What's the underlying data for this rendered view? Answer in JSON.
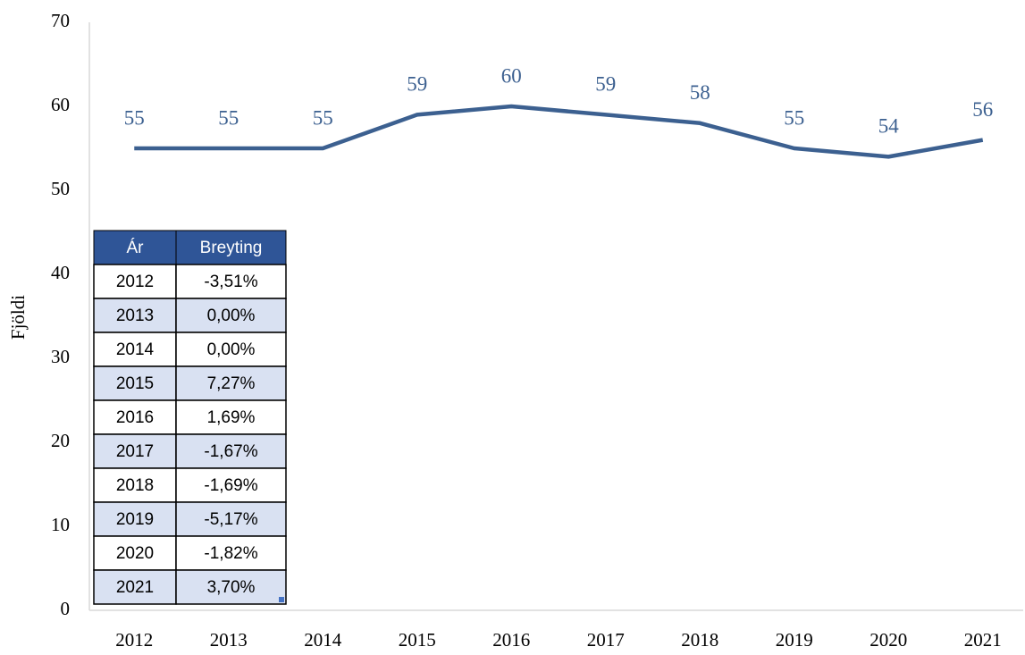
{
  "chart_data": {
    "type": "line",
    "categories": [
      "2012",
      "2013",
      "2014",
      "2015",
      "2016",
      "2017",
      "2018",
      "2019",
      "2020",
      "2021"
    ],
    "values": [
      55,
      55,
      55,
      59,
      60,
      59,
      58,
      55,
      54,
      56
    ],
    "color": "#3c6090",
    "y_label": "Fjöldi",
    "ylim": [
      0,
      70
    ],
    "yticks": [
      0,
      10,
      20,
      30,
      40,
      50,
      60,
      70
    ]
  },
  "table": {
    "header": [
      "Ár",
      "Breyting"
    ],
    "rows": [
      [
        "2012",
        "-3,51%"
      ],
      [
        "2013",
        "0,00%"
      ],
      [
        "2014",
        "0,00%"
      ],
      [
        "2015",
        "7,27%"
      ],
      [
        "2016",
        "1,69%"
      ],
      [
        "2017",
        "-1,67%"
      ],
      [
        "2018",
        "-1,69%"
      ],
      [
        "2019",
        "-5,17%"
      ],
      [
        "2020",
        "-1,82%"
      ],
      [
        "2021",
        "3,70%"
      ]
    ]
  }
}
